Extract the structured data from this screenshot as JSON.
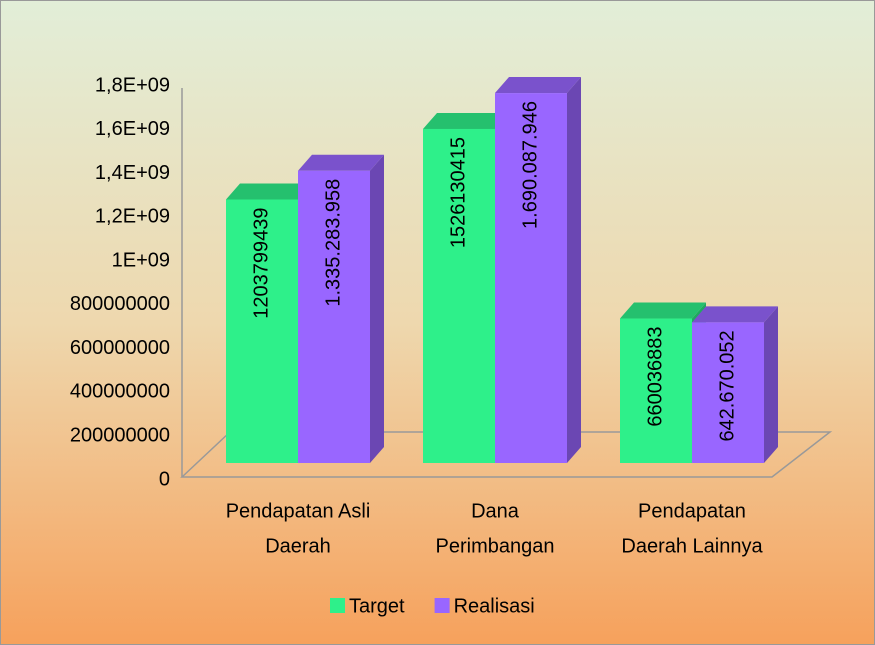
{
  "chart_data": {
    "type": "bar3d",
    "categories": [
      [
        "Pendapatan Asli",
        "Daerah"
      ],
      [
        "Dana",
        "Perimbangan"
      ],
      [
        "Pendapatan",
        "Daerah Lainnya"
      ]
    ],
    "series": [
      {
        "name": "Target",
        "color": "#2ef08a",
        "values": [
          1203799439,
          1526130415,
          660036883
        ]
      },
      {
        "name": "Realisasi",
        "color": "#9966ff",
        "values": [
          1335283958,
          1690087946,
          642670052
        ],
        "value_labels": [
          "1.335.283.958",
          "1.690.087.946",
          "642.670.052"
        ]
      }
    ],
    "ylim": [
      0,
      1800000000
    ],
    "yticks": [
      0,
      200000000,
      400000000,
      600000000,
      800000000,
      {
        "value": 1000000000,
        "label": "1E+09"
      },
      {
        "value": 1200000000,
        "label": "1,2E+09"
      },
      {
        "value": 1400000000,
        "label": "1,4E+09"
      },
      {
        "value": 1600000000,
        "label": "1,6E+09"
      },
      {
        "value": 1800000000,
        "label": "1,8E+09"
      }
    ],
    "legend": "bottom"
  }
}
